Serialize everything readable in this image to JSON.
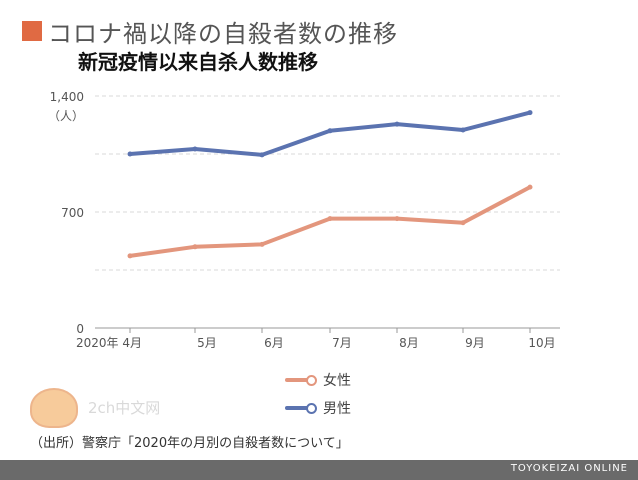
{
  "header": {
    "title": "コロナ禍以降の自殺者数の推移",
    "subtitle": "新冠疫情以来自杀人数推移",
    "accent_color": "#e06a43"
  },
  "chart_data": {
    "type": "line",
    "categories": [
      "2020年 4月",
      "5月",
      "6月",
      "7月",
      "8月",
      "9月",
      "10月"
    ],
    "series": [
      {
        "name": "男性",
        "color": "#5b73b0",
        "values": [
          1050,
          1080,
          1045,
          1190,
          1230,
          1195,
          1300
        ]
      },
      {
        "name": "女性",
        "color": "#e3967d",
        "values": [
          435,
          490,
          505,
          660,
          660,
          635,
          850
        ]
      }
    ],
    "yticks": [
      0,
      700,
      1400
    ],
    "ytick_labels": [
      "0",
      "700",
      "1,400"
    ],
    "ylim": [
      0,
      1400
    ],
    "yunit": "（人）",
    "grid": true,
    "legend": [
      {
        "name": "女性",
        "color": "#e3967d"
      },
      {
        "name": "男性",
        "color": "#5b73b0"
      }
    ]
  },
  "watermark": {
    "text": "2ch中文网",
    "icon": "chick-mascot-icon"
  },
  "source": "（出所）警察庁「2020年の月別の自殺者数について」",
  "footer": {
    "brand": "TOYOKEIZAI ONLINE"
  }
}
